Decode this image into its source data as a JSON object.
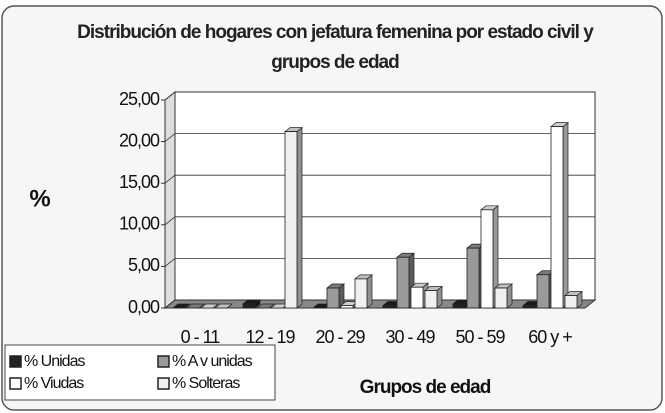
{
  "chart_data": {
    "type": "bar3d",
    "title": "Distribución de hogares con jefatura femenina por estado civil y grupos de edad",
    "y_label": "%",
    "x_label": "Grupos de edad",
    "categories": [
      "0 - 11",
      "12 - 19",
      "20 - 29",
      "30 - 49",
      "50 - 59",
      "60 y +"
    ],
    "series": [
      {
        "name": "% Unidas",
        "color": "#222222",
        "values": [
          0,
          0.5,
          0,
          0.3,
          0.5,
          0.3
        ]
      },
      {
        "name": "% A v unidas",
        "color": "#9a9a9a",
        "values": [
          0,
          0,
          2.4,
          6.1,
          7.2,
          4.0
        ]
      },
      {
        "name": "% Viudas",
        "color": "#ffffff",
        "values": [
          0,
          0,
          0.3,
          2.5,
          11.8,
          21.8
        ]
      },
      {
        "name": "% Solteras",
        "color": "#f0f0f0",
        "values": [
          0,
          21.2,
          3.5,
          2.1,
          2.4,
          1.5
        ]
      }
    ],
    "ylim": [
      0,
      25
    ],
    "yticks": [
      {
        "value": 0,
        "label": "0,00"
      },
      {
        "value": 5,
        "label": "5,00"
      },
      {
        "value": 10,
        "label": "10,00"
      },
      {
        "value": 15,
        "label": "15,00"
      },
      {
        "value": 20,
        "label": "20,00"
      },
      {
        "value": 25,
        "label": "25,00"
      }
    ],
    "grid": true
  }
}
